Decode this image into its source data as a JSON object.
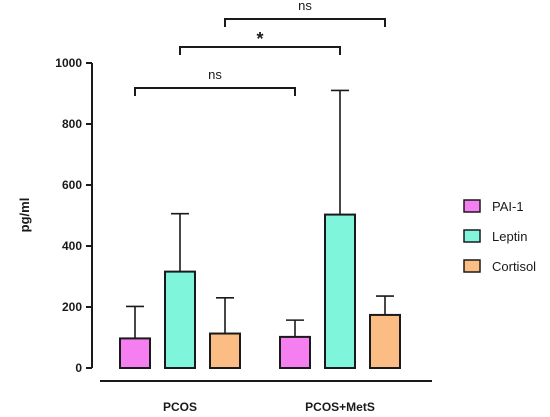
{
  "chart_data": {
    "type": "bar",
    "categories": [
      "PCOS",
      "PCOS+MetS"
    ],
    "ylabel": "pg/ml",
    "xlabel": "",
    "ylim": [
      0,
      1000
    ],
    "yticks": [
      0,
      200,
      400,
      600,
      800,
      1000
    ],
    "error_bars": "upper",
    "series": [
      {
        "name": "PAI-1",
        "color": "#f57ff0",
        "values": [
          97,
          102
        ],
        "errors": [
          105,
          55
        ]
      },
      {
        "name": "Leptin",
        "color": "#7ff5dc",
        "values": [
          316,
          503
        ],
        "errors": [
          190,
          407
        ]
      },
      {
        "name": "Cortisol",
        "color": "#fbbd83",
        "values": [
          113,
          174
        ],
        "errors": [
          117,
          62
        ]
      }
    ],
    "legend": {
      "placement": "right"
    },
    "significance": [
      {
        "label": "ns",
        "from": {
          "category": 0,
          "series": 0
        },
        "to": {
          "category": 1,
          "series": 0
        }
      },
      {
        "label": "*",
        "from": {
          "category": 0,
          "series": 1
        },
        "to": {
          "category": 1,
          "series": 1
        }
      },
      {
        "label": "ns",
        "from": {
          "category": 0,
          "series": 2
        },
        "to": {
          "category": 1,
          "series": 2
        }
      }
    ]
  }
}
